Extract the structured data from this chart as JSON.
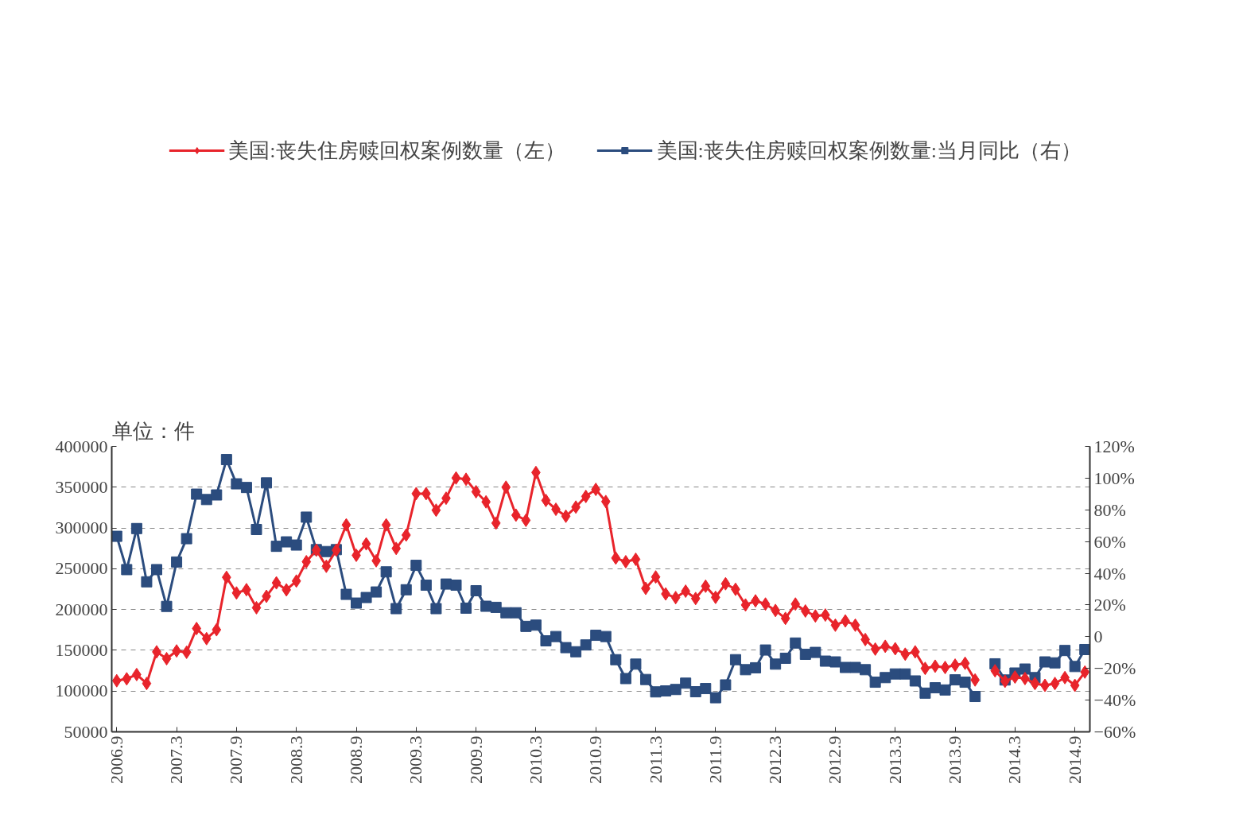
{
  "chart_data": {
    "type": "line",
    "categories": [
      "2006.9",
      null,
      null,
      null,
      null,
      null,
      "2007.3",
      null,
      null,
      null,
      null,
      null,
      "2007.9",
      null,
      null,
      null,
      null,
      null,
      "2008.3",
      null,
      null,
      null,
      null,
      null,
      "2008.9",
      null,
      null,
      null,
      null,
      null,
      "2009.3",
      null,
      null,
      null,
      null,
      null,
      "2009.9",
      null,
      null,
      null,
      null,
      null,
      "2010.3",
      null,
      null,
      null,
      null,
      null,
      "2010.9",
      null,
      null,
      null,
      null,
      null,
      "2011.3",
      null,
      null,
      null,
      null,
      null,
      "2011.9",
      null,
      null,
      null,
      null,
      null,
      "2012.3",
      null,
      null,
      null,
      null,
      null,
      "2012.9",
      null,
      null,
      null,
      null,
      null,
      "2013.3",
      null,
      null,
      null,
      null,
      null,
      "2013.9",
      null,
      null,
      null,
      null,
      null,
      "2014.3",
      null,
      null,
      null,
      null,
      null,
      "2014.9",
      null
    ],
    "series": [
      {
        "name": "美国:丧失住房赎回权案例数量（左）",
        "color": "#e8242b",
        "marker": "diamond",
        "values": [
          112700,
          115000,
          120300,
          109300,
          148100,
          139700,
          149200,
          147600,
          176700,
          164300,
          175200,
          239500,
          220300,
          224300,
          202200,
          216200,
          232700,
          224100,
          234900,
          258600,
          272800,
          253000,
          272800,
          303800,
          266500,
          280500,
          259800,
          303800,
          274900,
          291300,
          342100,
          342100,
          321800,
          336500,
          361300,
          359700,
          344400,
          332000,
          306000,
          350000,
          315700,
          309400,
          368000,
          333800,
          322900,
          314400,
          325600,
          338700,
          347300,
          332400,
          263100,
          258600,
          261600,
          225900,
          239900,
          219100,
          214600,
          222500,
          213500,
          228600,
          214900,
          231600,
          224800,
          205600,
          210600,
          206700,
          198800,
          189100,
          206700,
          198200,
          192100,
          193200,
          180800,
          186000,
          180800,
          163200,
          151500,
          154900,
          151900,
          145200,
          148100,
          127800,
          130500,
          128900,
          131800,
          134100,
          113600,
          null,
          124900,
          112000,
          117200,
          115400,
          109300,
          107000,
          109300,
          116500,
          107000,
          123300
        ]
      },
      {
        "name": "美国:丧失住房赎回权案例数量:当月同比（右）",
        "color": "#2b4c7e",
        "marker": "square",
        "axis": "y2",
        "values": [
          63.3,
          42.3,
          68.2,
          34.6,
          42.3,
          19.1,
          47.1,
          61.8,
          89.9,
          86.5,
          89.4,
          111.7,
          96.4,
          94.1,
          67.6,
          97.0,
          57.0,
          59.8,
          57.8,
          75.4,
          54.9,
          53.7,
          54.9,
          26.7,
          21.2,
          24.7,
          28.2,
          40.9,
          17.7,
          29.6,
          45.0,
          32.5,
          17.7,
          33.2,
          32.5,
          18.0,
          29.0,
          19.2,
          18.5,
          15.1,
          15.1,
          6.5,
          7.3,
          -2.6,
          0.1,
          -6.9,
          -9.5,
          -5.2,
          0.9,
          0.1,
          -14.5,
          -26.4,
          -17.3,
          -27.0,
          -34.8,
          -34.2,
          -33.3,
          -29.3,
          -34.7,
          -32.7,
          -38.5,
          -30.4,
          -14.5,
          -20.8,
          -19.6,
          -8.4,
          -17.3,
          -13.6,
          -4.0,
          -11.1,
          -9.9,
          -15.4,
          -15.9,
          -19.4,
          -19.4,
          -20.8,
          -28.7,
          -25.8,
          -23.5,
          -23.5,
          -27.9,
          -35.6,
          -32.2,
          -33.6,
          -27.2,
          -28.7,
          -37.7,
          null,
          -17.1,
          -27.3,
          -22.9,
          -20.4,
          -25.8,
          -15.9,
          -16.5,
          -8.7,
          -18.8,
          -8.1
        ]
      }
    ],
    "ylim": [
      50000,
      400000
    ],
    "yticks": [
      50000,
      100000,
      150000,
      200000,
      250000,
      300000,
      350000,
      400000
    ],
    "y2lim": [
      -60,
      120
    ],
    "y2ticks": [
      {
        "value": -60,
        "label": "−60%"
      },
      {
        "value": -40,
        "label": "−40%"
      },
      {
        "value": -20,
        "label": "−20%"
      },
      0,
      {
        "value": 20,
        "label": "20%"
      },
      {
        "value": 40,
        "label": "40%"
      },
      {
        "value": 60,
        "label": "60%"
      },
      {
        "value": 80,
        "label": "80%"
      },
      {
        "value": 100,
        "label": "100%"
      },
      {
        "value": 120,
        "label": "120%"
      }
    ],
    "annotations": [
      "单位：件"
    ],
    "grid": "y",
    "legend": "top",
    "line_style": "solid"
  }
}
